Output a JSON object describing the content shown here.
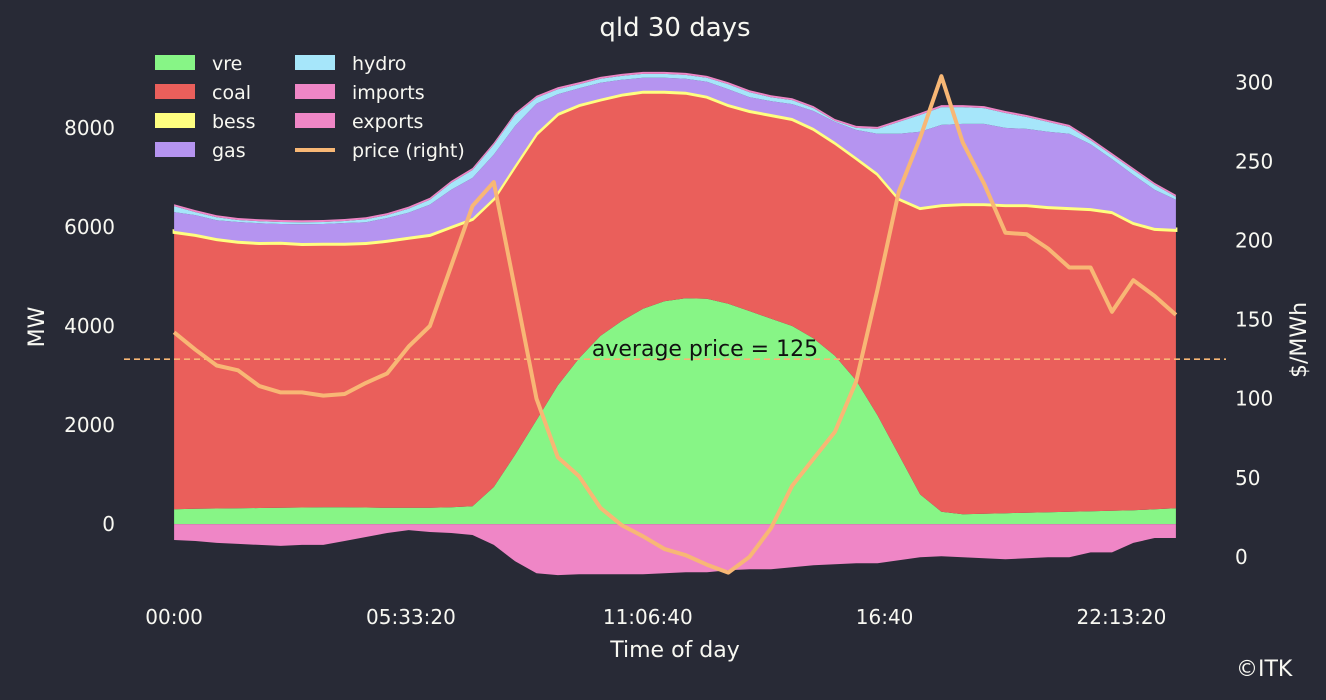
{
  "chart_data": {
    "type": "area",
    "title": "qld 30 days",
    "xlabel": "Time of day",
    "ylabel": "MW",
    "ylabel_right": "$/MWh",
    "copyright": "©ITK",
    "grid": false,
    "legend_position": "top-left",
    "xlim_seconds": [
      -4230,
      88830
    ],
    "ylim": [
      -1330,
      9330
    ],
    "ylim_right": [
      -21,
      313
    ],
    "x_ticks": [
      {
        "value": 0,
        "label": "00:00"
      },
      {
        "value": 20000,
        "label": "05:33:20"
      },
      {
        "value": 40000,
        "label": "11:06:40"
      },
      {
        "value": 60000,
        "label": "16:40"
      },
      {
        "value": 80000,
        "label": "22:13:20"
      }
    ],
    "y_ticks": [
      {
        "value": 0,
        "label": "0"
      },
      {
        "value": 2000,
        "label": "2000"
      },
      {
        "value": 4000,
        "label": "4000"
      },
      {
        "value": 6000,
        "label": "6000"
      },
      {
        "value": 8000,
        "label": "8000"
      }
    ],
    "y_ticks_right": [
      {
        "value": 0,
        "label": "0"
      },
      {
        "value": 50,
        "label": "50"
      },
      {
        "value": 100,
        "label": "100"
      },
      {
        "value": 150,
        "label": "150"
      },
      {
        "value": 200,
        "label": "200"
      },
      {
        "value": 250,
        "label": "250"
      },
      {
        "value": 300,
        "label": "300"
      }
    ],
    "x": [
      "00:00",
      "00:30",
      "01:00",
      "01:30",
      "02:00",
      "02:30",
      "03:00",
      "03:30",
      "04:00",
      "04:30",
      "05:00",
      "05:30",
      "06:00",
      "06:30",
      "07:00",
      "07:30",
      "08:00",
      "08:30",
      "09:00",
      "09:30",
      "10:00",
      "10:30",
      "11:00",
      "11:30",
      "12:00",
      "12:30",
      "13:00",
      "13:30",
      "14:00",
      "14:30",
      "15:00",
      "15:30",
      "16:00",
      "16:30",
      "17:00",
      "17:30",
      "18:00",
      "18:30",
      "19:00",
      "19:30",
      "20:00",
      "20:30",
      "21:00",
      "21:30",
      "22:00",
      "22:30",
      "23:00",
      "23:30"
    ],
    "series": [
      {
        "name": "vre",
        "color": "#87f586",
        "axis": "left",
        "values": [
          300,
          310,
          315,
          320,
          325,
          330,
          335,
          340,
          340,
          335,
          330,
          330,
          330,
          340,
          360,
          750,
          1400,
          2100,
          2800,
          3350,
          3800,
          4100,
          4350,
          4500,
          4560,
          4550,
          4450,
          4300,
          4150,
          4000,
          3750,
          3400,
          2900,
          2200,
          1400,
          600,
          250,
          200,
          210,
          220,
          230,
          240,
          250,
          260,
          270,
          280,
          300,
          320
        ]
      },
      {
        "name": "coal",
        "color": "#ea5f5b",
        "axis": "left",
        "values": [
          5590,
          5520,
          5430,
          5370,
          5340,
          5340,
          5310,
          5310,
          5310,
          5330,
          5380,
          5440,
          5500,
          5650,
          5790,
          5810,
          5820,
          5770,
          5470,
          5100,
          4760,
          4560,
          4370,
          4220,
          4140,
          4070,
          4000,
          4030,
          4100,
          4170,
          4220,
          4290,
          4480,
          4860,
          5160,
          5770,
          6180,
          6250,
          6240,
          6210,
          6200,
          6150,
          6120,
          6090,
          6020,
          5790,
          5650,
          5610
        ]
      },
      {
        "name": "bess",
        "color": "#ffff80",
        "axis": "left",
        "values": [
          30,
          30,
          30,
          30,
          30,
          30,
          30,
          30,
          30,
          30,
          30,
          30,
          30,
          30,
          30,
          30,
          30,
          30,
          30,
          30,
          30,
          30,
          30,
          30,
          30,
          30,
          30,
          30,
          30,
          30,
          30,
          30,
          30,
          30,
          30,
          30,
          30,
          30,
          30,
          30,
          30,
          30,
          30,
          30,
          30,
          30,
          30,
          30
        ]
      },
      {
        "name": "gas",
        "color": "#b594f0",
        "axis": "left",
        "values": [
          380,
          380,
          360,
          380,
          380,
          360,
          380,
          380,
          400,
          400,
          440,
          490,
          590,
          730,
          810,
          870,
          790,
          590,
          380,
          320,
          320,
          280,
          260,
          260,
          260,
          280,
          300,
          260,
          260,
          280,
          340,
          400,
          550,
          790,
          1290,
          1520,
          1600,
          1600,
          1600,
          1540,
          1520,
          1500,
          1480,
          1290,
          1050,
          950,
          770,
          590
        ]
      },
      {
        "name": "hydro",
        "color": "#a6e6fa",
        "axis": "left",
        "values": [
          120,
          60,
          60,
          40,
          40,
          40,
          40,
          40,
          40,
          60,
          60,
          80,
          100,
          140,
          160,
          200,
          220,
          120,
          100,
          80,
          80,
          80,
          80,
          80,
          80,
          80,
          100,
          100,
          80,
          80,
          60,
          20,
          40,
          100,
          240,
          340,
          360,
          340,
          320,
          300,
          240,
          200,
          140,
          80,
          80,
          100,
          100,
          60
        ]
      },
      {
        "name": "imports",
        "color": "#ef86c6",
        "axis": "left",
        "values": [
          40,
          40,
          40,
          40,
          40,
          40,
          40,
          40,
          40,
          40,
          40,
          40,
          40,
          40,
          40,
          40,
          40,
          40,
          40,
          40,
          40,
          40,
          40,
          40,
          40,
          40,
          40,
          40,
          40,
          40,
          40,
          40,
          40,
          40,
          40,
          40,
          40,
          40,
          40,
          40,
          40,
          40,
          40,
          40,
          40,
          40,
          40,
          40
        ]
      },
      {
        "name": "exports",
        "color": "#ef86c6",
        "axis": "left",
        "values": [
          -320,
          -340,
          -380,
          -400,
          -420,
          -440,
          -420,
          -420,
          -340,
          -260,
          -180,
          -120,
          -160,
          -180,
          -220,
          -420,
          -750,
          -990,
          -1030,
          -1010,
          -1010,
          -1010,
          -1010,
          -990,
          -970,
          -970,
          -930,
          -910,
          -910,
          -870,
          -830,
          -810,
          -790,
          -790,
          -730,
          -670,
          -650,
          -670,
          -690,
          -710,
          -690,
          -670,
          -670,
          -570,
          -570,
          -380,
          -280,
          -280
        ]
      },
      {
        "name": "price (right)",
        "color": "#f8b775",
        "axis": "right",
        "type": "line",
        "values": [
          142,
          131,
          121,
          118,
          108,
          104,
          104,
          102,
          103,
          110,
          116,
          133,
          146,
          184,
          222,
          237,
          169,
          100,
          63,
          51,
          31,
          20,
          13,
          5,
          1,
          -5,
          -10,
          0,
          18,
          45,
          62,
          79,
          111,
          169,
          231,
          265,
          304,
          262,
          236,
          205,
          204,
          195,
          183,
          183,
          155,
          175,
          165,
          153
        ]
      }
    ],
    "annotation": {
      "text": "average price = 125",
      "value": 125,
      "axis": "right",
      "color": "#f8b775"
    },
    "background": "#282a36"
  }
}
